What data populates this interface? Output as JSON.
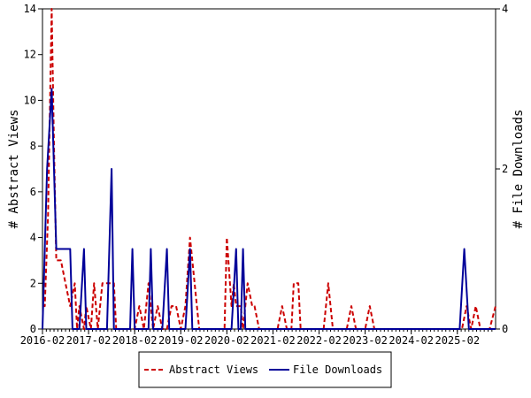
{
  "chart_data": {
    "type": "line",
    "ylabel": "# Abstract Views",
    "y2label": "# File Downloads",
    "ylim": [
      0,
      14
    ],
    "y2lim": [
      0,
      4
    ],
    "yticks": [
      0,
      2,
      4,
      6,
      8,
      10,
      12,
      14
    ],
    "y2ticks": [
      0,
      2,
      4
    ],
    "xlim": [
      2016.0,
      2025.83
    ],
    "xticks": [
      {
        "label": "2016-02",
        "x": 2016.0
      },
      {
        "label": "2017-02",
        "x": 2017.0
      },
      {
        "label": "2018-02",
        "x": 2018.0
      },
      {
        "label": "2019-02",
        "x": 2019.0
      },
      {
        "label": "2020-02",
        "x": 2020.0
      },
      {
        "label": "2021-02",
        "x": 2021.0
      },
      {
        "label": "2022-02",
        "x": 2022.0
      },
      {
        "label": "2023-02",
        "x": 2023.0
      },
      {
        "label": "2024-02",
        "x": 2024.0
      },
      {
        "label": "2025-02",
        "x": 2025.0
      }
    ],
    "legend_position": "bottom",
    "grid": false,
    "series": [
      {
        "name": "Abstract Views",
        "axis": "left",
        "color": "#cc0000",
        "dash": "dashed",
        "points": [
          [
            2016.0,
            1
          ],
          [
            2016.05,
            1
          ],
          [
            2016.12,
            5
          ],
          [
            2016.2,
            14
          ],
          [
            2016.25,
            8
          ],
          [
            2016.3,
            3
          ],
          [
            2016.4,
            3
          ],
          [
            2016.5,
            2
          ],
          [
            2016.6,
            1
          ],
          [
            2016.7,
            2
          ],
          [
            2016.75,
            0
          ],
          [
            2016.8,
            1
          ],
          [
            2016.9,
            0
          ],
          [
            2016.95,
            1
          ],
          [
            2017.05,
            0
          ],
          [
            2017.12,
            2
          ],
          [
            2017.2,
            0
          ],
          [
            2017.3,
            2
          ],
          [
            2017.4,
            2
          ],
          [
            2017.55,
            2
          ],
          [
            2017.6,
            0
          ],
          [
            2017.7,
            0
          ],
          [
            2017.8,
            0
          ],
          [
            2017.9,
            0
          ],
          [
            2018.0,
            0
          ],
          [
            2018.1,
            1
          ],
          [
            2018.2,
            0
          ],
          [
            2018.3,
            2
          ],
          [
            2018.4,
            0
          ],
          [
            2018.5,
            1
          ],
          [
            2018.6,
            0
          ],
          [
            2018.7,
            0
          ],
          [
            2018.8,
            1
          ],
          [
            2018.9,
            1
          ],
          [
            2019.0,
            0
          ],
          [
            2019.1,
            1
          ],
          [
            2019.2,
            4
          ],
          [
            2019.3,
            2
          ],
          [
            2019.4,
            0
          ],
          [
            2019.5,
            0
          ],
          [
            2019.6,
            0
          ],
          [
            2019.7,
            0
          ],
          [
            2019.8,
            0
          ],
          [
            2019.9,
            0
          ],
          [
            2019.95,
            0
          ],
          [
            2020.0,
            4
          ],
          [
            2020.1,
            1
          ],
          [
            2020.15,
            2
          ],
          [
            2020.2,
            1
          ],
          [
            2020.3,
            1
          ],
          [
            2020.35,
            0
          ],
          [
            2020.45,
            2
          ],
          [
            2020.55,
            1
          ],
          [
            2020.6,
            1
          ],
          [
            2020.7,
            0
          ],
          [
            2020.8,
            0
          ],
          [
            2020.9,
            0
          ],
          [
            2021.0,
            0
          ],
          [
            2021.1,
            0
          ],
          [
            2021.2,
            1
          ],
          [
            2021.3,
            0
          ],
          [
            2021.4,
            0
          ],
          [
            2021.45,
            2
          ],
          [
            2021.55,
            2
          ],
          [
            2021.6,
            0
          ],
          [
            2021.7,
            0
          ],
          [
            2021.8,
            0
          ],
          [
            2021.9,
            0
          ],
          [
            2022.0,
            0
          ],
          [
            2022.05,
            0
          ],
          [
            2022.1,
            0
          ],
          [
            2022.2,
            2
          ],
          [
            2022.3,
            0
          ],
          [
            2022.4,
            0
          ],
          [
            2022.5,
            0
          ],
          [
            2022.6,
            0
          ],
          [
            2022.7,
            1
          ],
          [
            2022.8,
            0
          ],
          [
            2022.9,
            0
          ],
          [
            2023.0,
            0
          ],
          [
            2023.1,
            1
          ],
          [
            2023.2,
            0
          ],
          [
            2023.3,
            0
          ],
          [
            2023.4,
            0
          ],
          [
            2023.5,
            0
          ],
          [
            2023.6,
            0
          ],
          [
            2023.7,
            0
          ],
          [
            2023.8,
            0
          ],
          [
            2023.9,
            0
          ],
          [
            2024.0,
            0
          ],
          [
            2024.2,
            0
          ],
          [
            2024.4,
            0
          ],
          [
            2024.6,
            0
          ],
          [
            2024.8,
            0
          ],
          [
            2025.0,
            0
          ],
          [
            2025.1,
            0
          ],
          [
            2025.2,
            1
          ],
          [
            2025.3,
            0
          ],
          [
            2025.4,
            1
          ],
          [
            2025.5,
            0
          ],
          [
            2025.6,
            0
          ],
          [
            2025.7,
            0
          ],
          [
            2025.83,
            1
          ]
        ]
      },
      {
        "name": "File Downloads",
        "axis": "right",
        "color": "#000099",
        "dash": "solid",
        "points": [
          [
            2016.0,
            0
          ],
          [
            2016.1,
            2
          ],
          [
            2016.2,
            3
          ],
          [
            2016.25,
            2
          ],
          [
            2016.3,
            1
          ],
          [
            2016.4,
            1
          ],
          [
            2016.5,
            1
          ],
          [
            2016.6,
            1
          ],
          [
            2016.65,
            0
          ],
          [
            2016.7,
            0
          ],
          [
            2016.8,
            0
          ],
          [
            2016.9,
            1
          ],
          [
            2016.95,
            0
          ],
          [
            2017.0,
            0
          ],
          [
            2017.1,
            0
          ],
          [
            2017.2,
            0
          ],
          [
            2017.3,
            0
          ],
          [
            2017.4,
            0
          ],
          [
            2017.45,
            1
          ],
          [
            2017.5,
            2
          ],
          [
            2017.55,
            0
          ],
          [
            2017.6,
            0
          ],
          [
            2017.7,
            0
          ],
          [
            2017.8,
            0
          ],
          [
            2017.9,
            0
          ],
          [
            2017.95,
            1
          ],
          [
            2018.0,
            0
          ],
          [
            2018.1,
            0
          ],
          [
            2018.2,
            0
          ],
          [
            2018.3,
            0
          ],
          [
            2018.35,
            1
          ],
          [
            2018.4,
            0
          ],
          [
            2018.5,
            0
          ],
          [
            2018.6,
            0
          ],
          [
            2018.7,
            1
          ],
          [
            2018.75,
            0
          ],
          [
            2018.8,
            0
          ],
          [
            2018.9,
            0
          ],
          [
            2019.0,
            0
          ],
          [
            2019.1,
            0
          ],
          [
            2019.2,
            1
          ],
          [
            2019.25,
            0
          ],
          [
            2019.3,
            0
          ],
          [
            2019.4,
            0
          ],
          [
            2019.5,
            0
          ],
          [
            2019.6,
            0
          ],
          [
            2019.7,
            0
          ],
          [
            2019.8,
            0
          ],
          [
            2019.9,
            0
          ],
          [
            2019.95,
            0
          ],
          [
            2020.0,
            0
          ],
          [
            2020.1,
            0
          ],
          [
            2020.2,
            1
          ],
          [
            2020.25,
            0
          ],
          [
            2020.3,
            0
          ],
          [
            2020.35,
            1
          ],
          [
            2020.4,
            0
          ],
          [
            2020.5,
            0
          ],
          [
            2020.6,
            0
          ],
          [
            2020.7,
            0
          ],
          [
            2020.8,
            0
          ],
          [
            2020.9,
            0
          ],
          [
            2021.0,
            0
          ],
          [
            2021.5,
            0
          ],
          [
            2022.0,
            0
          ],
          [
            2022.5,
            0
          ],
          [
            2023.0,
            0
          ],
          [
            2023.5,
            0
          ],
          [
            2024.0,
            0
          ],
          [
            2024.5,
            0
          ],
          [
            2024.9,
            0
          ],
          [
            2025.0,
            0
          ],
          [
            2025.05,
            0
          ],
          [
            2025.15,
            1
          ],
          [
            2025.25,
            0
          ],
          [
            2025.4,
            0
          ],
          [
            2025.6,
            0
          ],
          [
            2025.83,
            0
          ]
        ]
      }
    ]
  }
}
